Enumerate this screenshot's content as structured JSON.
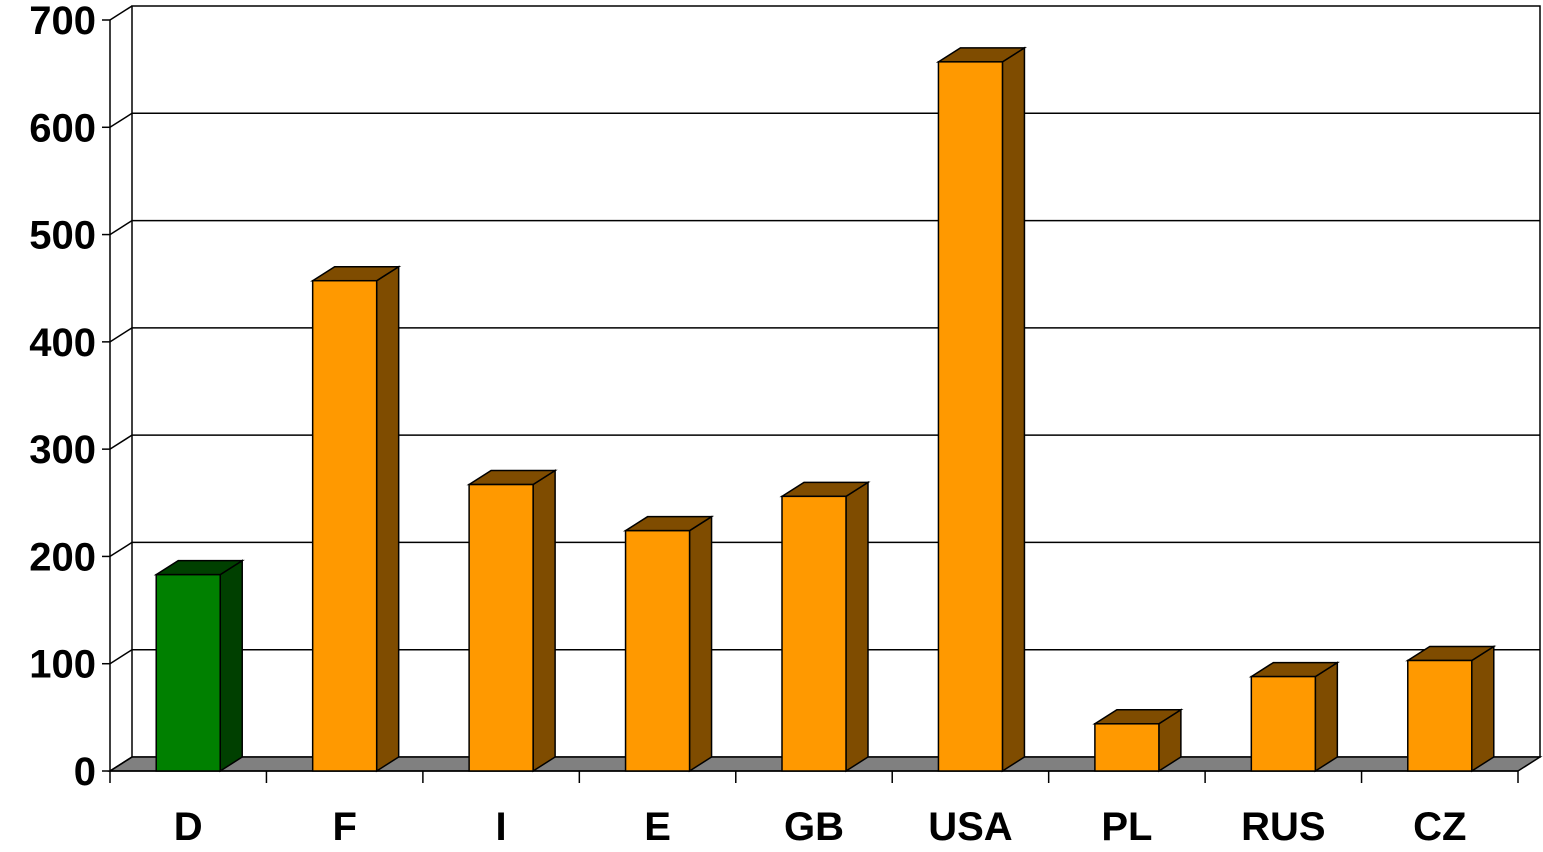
{
  "chart_data": {
    "type": "bar",
    "categories": [
      "D",
      "F",
      "I",
      "E",
      "GB",
      "USA",
      "PL",
      "RUS",
      "CZ"
    ],
    "values": [
      183,
      457,
      267,
      224,
      256,
      661,
      44,
      88,
      103
    ],
    "ylim": [
      0,
      700
    ],
    "yticks": [
      "0",
      "100",
      "200",
      "300",
      "400",
      "500",
      "600",
      "700"
    ],
    "title": "",
    "xlabel": "",
    "ylabel": "",
    "grid": true,
    "style": "3d-column",
    "highlight_index": 0,
    "colors": {
      "highlight_front": "#008000",
      "highlight_side": "#004000",
      "bar_front": "#FF9900",
      "bar_side": "#7F4C00",
      "floor": "#808080",
      "grid": "#000000"
    }
  }
}
